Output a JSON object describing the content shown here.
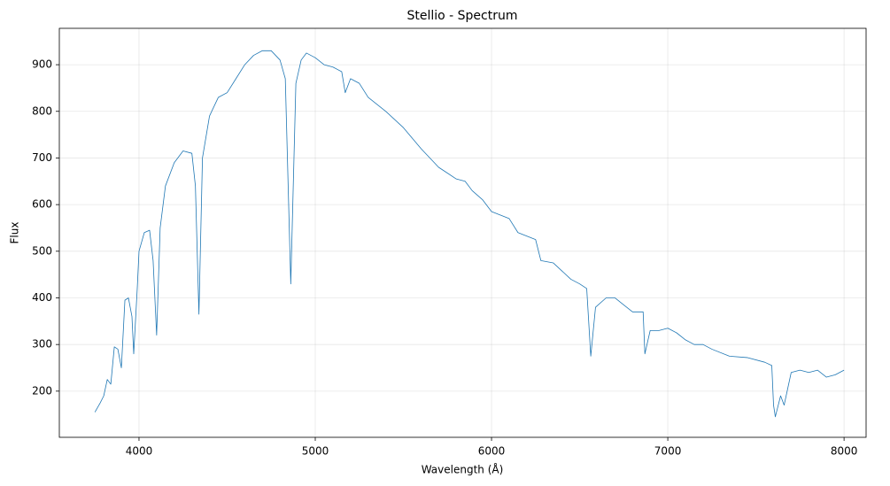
{
  "chart_data": {
    "type": "line",
    "title": "Stellio - Spectrum",
    "xlabel": "Wavelength (Å)",
    "ylabel": "Flux",
    "x": [
      3750,
      3780,
      3800,
      3820,
      3840,
      3860,
      3880,
      3900,
      3920,
      3940,
      3960,
      3970,
      3990,
      4000,
      4030,
      4060,
      4080,
      4100,
      4120,
      4150,
      4200,
      4250,
      4300,
      4320,
      4340,
      4360,
      4400,
      4450,
      4500,
      4550,
      4600,
      4650,
      4700,
      4750,
      4800,
      4830,
      4861,
      4890,
      4920,
      4950,
      5000,
      5050,
      5100,
      5150,
      5170,
      5200,
      5250,
      5300,
      5400,
      5500,
      5600,
      5700,
      5800,
      5850,
      5890,
      5950,
      6000,
      6100,
      6150,
      6250,
      6280,
      6350,
      6450,
      6500,
      6540,
      6563,
      6590,
      6650,
      6700,
      6750,
      6800,
      6860,
      6870,
      6900,
      6950,
      7000,
      7050,
      7100,
      7150,
      7200,
      7250,
      7350,
      7450,
      7550,
      7590,
      7600,
      7610,
      7640,
      7660,
      7700,
      7750,
      7800,
      7850,
      7900,
      7950,
      8000
    ],
    "series": [
      {
        "name": "Flux",
        "color": "#1f77b4",
        "values": [
          155,
          175,
          190,
          225,
          215,
          295,
          290,
          250,
          395,
          400,
          360,
          280,
          420,
          500,
          540,
          545,
          480,
          320,
          550,
          640,
          690,
          715,
          710,
          640,
          365,
          700,
          790,
          830,
          840,
          870,
          900,
          920,
          930,
          930,
          910,
          870,
          430,
          860,
          910,
          925,
          915,
          900,
          895,
          885,
          840,
          870,
          860,
          830,
          800,
          765,
          720,
          680,
          655,
          650,
          630,
          610,
          585,
          570,
          540,
          525,
          480,
          475,
          440,
          430,
          420,
          275,
          380,
          400,
          400,
          385,
          370,
          370,
          280,
          330,
          330,
          335,
          325,
          310,
          300,
          300,
          290,
          275,
          272,
          262,
          255,
          170,
          145,
          190,
          170,
          240,
          245,
          240,
          245,
          230,
          235,
          245
        ]
      }
    ],
    "xlim": [
      3548,
      8125
    ],
    "ylim": [
      101,
      978
    ],
    "xticks": [
      4000,
      5000,
      6000,
      7000,
      8000
    ],
    "yticks": [
      200,
      300,
      400,
      500,
      600,
      700,
      800,
      900
    ],
    "grid": true
  }
}
